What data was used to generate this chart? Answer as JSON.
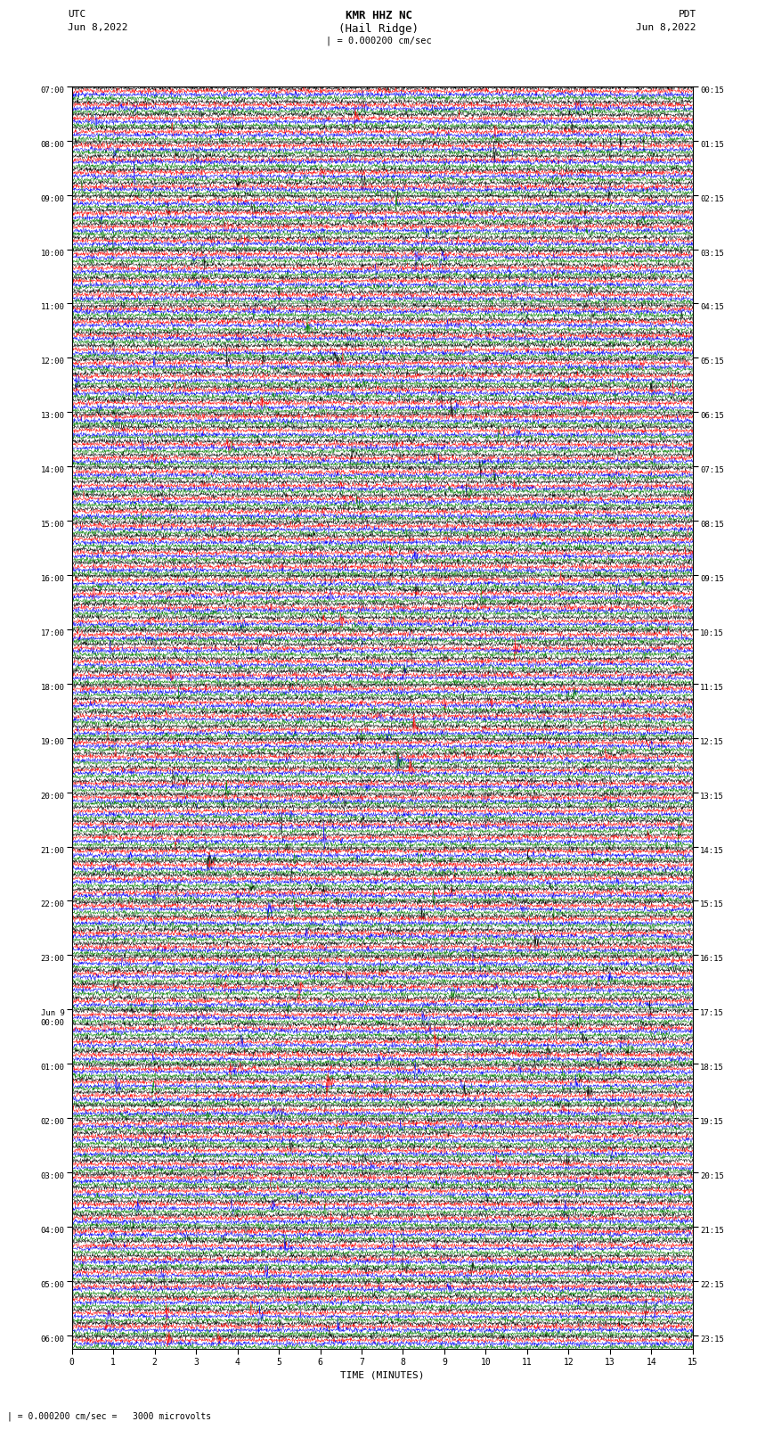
{
  "title_line1": "KMR HHZ NC",
  "title_line2": "(Hail Ridge)",
  "scale_text": "| = 0.000200 cm/sec",
  "left_header": "UTC",
  "left_date": "Jun 8,2022",
  "right_header": "PDT",
  "right_date": "Jun 8,2022",
  "xlabel": "TIME (MINUTES)",
  "bottom_text": "| = 0.000200 cm/sec =   3000 microvolts",
  "colors": [
    "black",
    "red",
    "blue",
    "green"
  ],
  "fig_width": 8.5,
  "fig_height": 16.13,
  "dpi": 100,
  "n_row_groups": 93,
  "n_traces": 4,
  "n_points": 1800,
  "utc_display": [
    "07:00",
    "08:00",
    "09:00",
    "10:00",
    "11:00",
    "12:00",
    "13:00",
    "14:00",
    "15:00",
    "16:00",
    "17:00",
    "18:00",
    "19:00",
    "20:00",
    "21:00",
    "22:00",
    "23:00",
    "Jun 9\n00:00",
    "01:00",
    "02:00",
    "03:00",
    "04:00",
    "05:00",
    "06:00"
  ],
  "pdt_display": [
    "00:15",
    "01:15",
    "02:15",
    "03:15",
    "04:15",
    "05:15",
    "06:15",
    "07:15",
    "08:15",
    "09:15",
    "10:15",
    "11:15",
    "12:15",
    "13:15",
    "14:15",
    "15:15",
    "16:15",
    "17:15",
    "18:15",
    "19:15",
    "20:15",
    "21:15",
    "22:15",
    "23:15"
  ]
}
